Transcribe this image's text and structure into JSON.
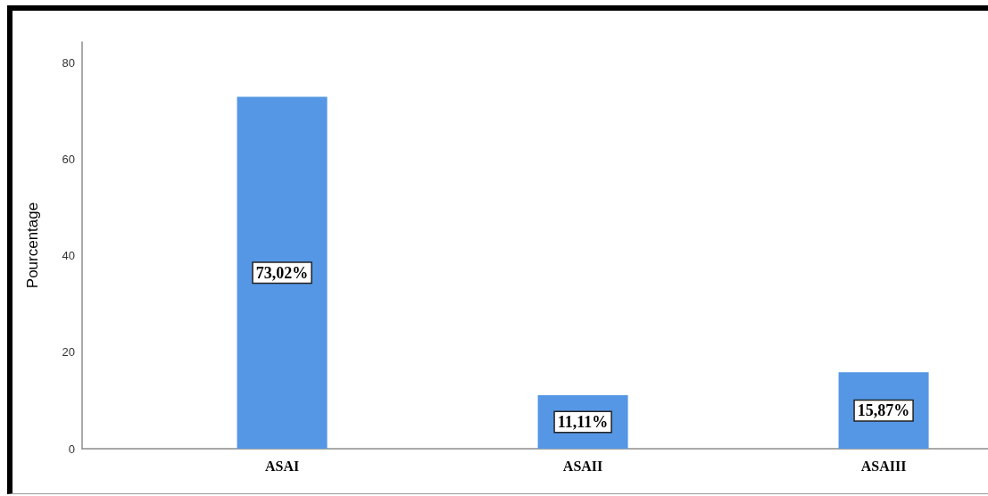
{
  "chart_data": {
    "type": "bar",
    "categories": [
      "ASAI",
      "ASAII",
      "ASAIII"
    ],
    "values": [
      73.02,
      11.11,
      15.87
    ],
    "color": "#5597e4",
    "ylabel": "Pourcentage",
    "ylim": [
      0,
      84.4
    ],
    "yticks": [
      0,
      20,
      40,
      60,
      80
    ],
    "value_labels": [
      "73,02%",
      "11,11%",
      "15,87%"
    ]
  }
}
